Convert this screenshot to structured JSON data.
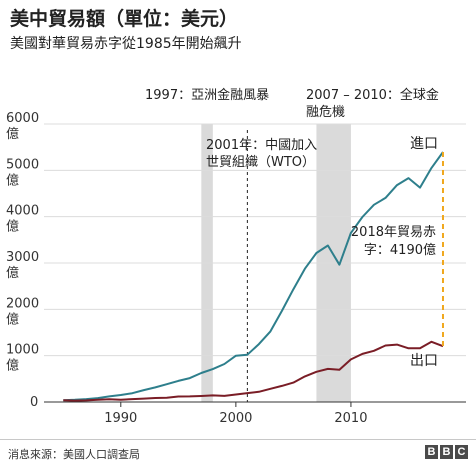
{
  "header": {
    "title": "美中貿易額（單位：美元）",
    "subtitle": "美國對華貿易赤字從1985年開始飆升"
  },
  "footer": {
    "source": "消息來源：美國人口調查局",
    "logo": [
      "B",
      "B",
      "C"
    ]
  },
  "colors": {
    "imports": "#2e7f8c",
    "exports": "#7a1d26",
    "highlight": "#dadada",
    "deficit_line": "#f0a81e",
    "grid": "#dcdcdc"
  },
  "chart_data": {
    "type": "line",
    "x_ticks": [
      1990,
      2000,
      2010
    ],
    "xlim": [
      1983.5,
      2020
    ],
    "ylim": [
      0,
      6000
    ],
    "y_ticks": [
      {
        "value": 0,
        "label": "0",
        "label2": ""
      },
      {
        "value": 1000,
        "label": "1000",
        "label2": "億"
      },
      {
        "value": 2000,
        "label": "2000",
        "label2": "億"
      },
      {
        "value": 3000,
        "label": "3000",
        "label2": "億"
      },
      {
        "value": 4000,
        "label": "4000",
        "label2": "億"
      },
      {
        "value": 5000,
        "label": "5000",
        "label2": "億"
      },
      {
        "value": 6000,
        "label": "6000",
        "label2": "億"
      }
    ],
    "series": [
      {
        "name": "進口",
        "x": [
          1985,
          1986,
          1987,
          1988,
          1989,
          1990,
          1991,
          1992,
          1993,
          1994,
          1995,
          1996,
          1997,
          1998,
          1999,
          2000,
          2001,
          2002,
          2003,
          2004,
          2005,
          2006,
          2007,
          2008,
          2009,
          2010,
          2011,
          2012,
          2013,
          2014,
          2015,
          2016,
          2017,
          2018
        ],
        "values": [
          39,
          48,
          63,
          85,
          120,
          152,
          190,
          257,
          315,
          385,
          455,
          515,
          625,
          710,
          820,
          1000,
          1020,
          1250,
          1524,
          1967,
          2434,
          2878,
          3215,
          3377,
          2963,
          3649,
          3993,
          4256,
          4404,
          4682,
          4832,
          4627,
          5052,
          5395
        ]
      },
      {
        "name": "出口",
        "x": [
          1985,
          1986,
          1987,
          1988,
          1989,
          1990,
          1991,
          1992,
          1993,
          1994,
          1995,
          1996,
          1997,
          1998,
          1999,
          2000,
          2001,
          2002,
          2003,
          2004,
          2005,
          2006,
          2007,
          2008,
          2009,
          2010,
          2011,
          2012,
          2013,
          2014,
          2015,
          2016,
          2017,
          2018
        ],
        "values": [
          38,
          31,
          35,
          50,
          58,
          48,
          62,
          74,
          87,
          93,
          118,
          120,
          129,
          142,
          131,
          162,
          192,
          221,
          284,
          347,
          418,
          553,
          652,
          715,
          695,
          919,
          1039,
          1105,
          1220,
          1238,
          1160,
          1158,
          1299,
          1204
        ]
      }
    ],
    "highlight_bands": [
      {
        "from": 1997,
        "to": 1998,
        "label": [
          "1997：亞洲金融風暴"
        ]
      },
      {
        "from": 2007,
        "to": 2010,
        "label": [
          "2007 – 2010：全球金",
          "融危機"
        ]
      }
    ],
    "annotations": {
      "wto": {
        "x": 2001,
        "label": [
          "2001年：中國加入",
          "世貿組織（WTO）"
        ]
      },
      "imports_label": "進口",
      "exports_label": "出口",
      "deficit": {
        "x": 2018,
        "from": 1204,
        "to": 5395,
        "label": [
          "2018年貿易赤",
          "字：4190億"
        ]
      }
    }
  }
}
